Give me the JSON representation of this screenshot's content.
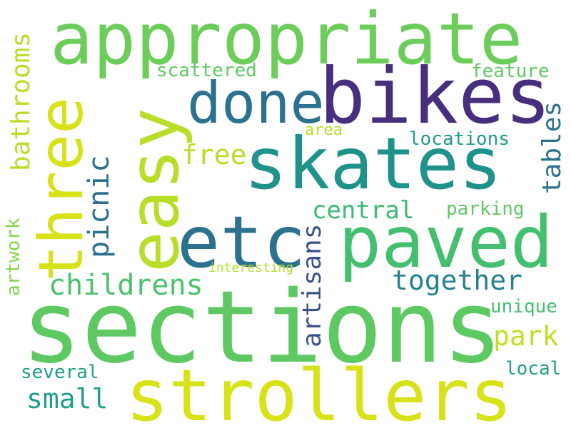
{
  "word_cloud": {
    "appropriate": {
      "text": "appropriate",
      "color": "#6ccd5a"
    },
    "bikes": {
      "text": "bikes",
      "color": "#472f7d"
    },
    "done": {
      "text": "done",
      "color": "#2c728e"
    },
    "skates": {
      "text": "skates",
      "color": "#20928c"
    },
    "three": {
      "text": "three",
      "color": "#d8e219"
    },
    "easy": {
      "text": "easy",
      "color": "#b8de29"
    },
    "etc": {
      "text": "etc",
      "color": "#2c728e"
    },
    "paved": {
      "text": "paved",
      "color": "#44bf70"
    },
    "sections": {
      "text": "sections",
      "color": "#5ec962"
    },
    "strollers": {
      "text": "strollers",
      "color": "#d8e219"
    },
    "scattered": {
      "text": "scattered",
      "color": "#5ec962"
    },
    "feature": {
      "text": "feature",
      "color": "#5ec962"
    },
    "area": {
      "text": "area",
      "color": "#b8de29"
    },
    "locations": {
      "text": "locations",
      "color": "#1e9b8a"
    },
    "free": {
      "text": "free",
      "color": "#b8de29"
    },
    "central": {
      "text": "central",
      "color": "#3bbb75"
    },
    "parking": {
      "text": "parking",
      "color": "#5ec962"
    },
    "childrens": {
      "text": "childrens",
      "color": "#4ac16d"
    },
    "together": {
      "text": "together",
      "color": "#26818e"
    },
    "interesting": {
      "text": "interesting",
      "color": "#b8de29"
    },
    "unique": {
      "text": "unique",
      "color": "#44bf70"
    },
    "park": {
      "text": "park",
      "color": "#c2df23"
    },
    "several": {
      "text": "several",
      "color": "#1f9e89"
    },
    "local": {
      "text": "local",
      "color": "#1f9e89"
    },
    "small": {
      "text": "small",
      "color": "#1f9e89"
    },
    "bathrooms": {
      "text": "bathrooms",
      "color": "#b8de29"
    },
    "picnic": {
      "text": "picnic",
      "color": "#2c728e"
    },
    "tables": {
      "text": "tables",
      "color": "#2c728e"
    },
    "artisans": {
      "text": "artisans",
      "color": "#3b528b"
    },
    "artwork": {
      "text": "artwork",
      "color": "#84d44b"
    }
  }
}
